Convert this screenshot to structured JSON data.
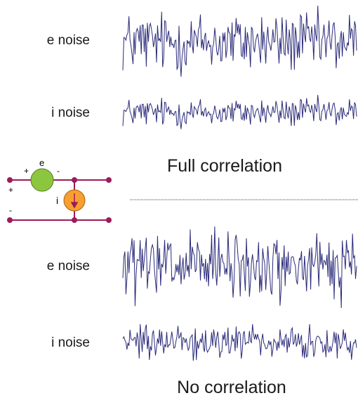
{
  "top_panel": {
    "e_label": "e noise",
    "i_label": "i noise",
    "caption": "Full correlation"
  },
  "bottom_panel": {
    "e_label": "e noise",
    "i_label": "i noise",
    "caption": "No correlation"
  },
  "circuit": {
    "e_source_label": "e",
    "i_source_label": "i",
    "plus_sign_e": "+",
    "minus_sign_e": "-",
    "plus_sign_input": "+",
    "minus_sign_input": "-",
    "colors": {
      "wire": "#9b1b5b",
      "e_source_fill": "#8cc63f",
      "i_source_fill": "#f7a030"
    }
  },
  "colors": {
    "waveform": "#2a2a7a",
    "divider": "#444444"
  }
}
